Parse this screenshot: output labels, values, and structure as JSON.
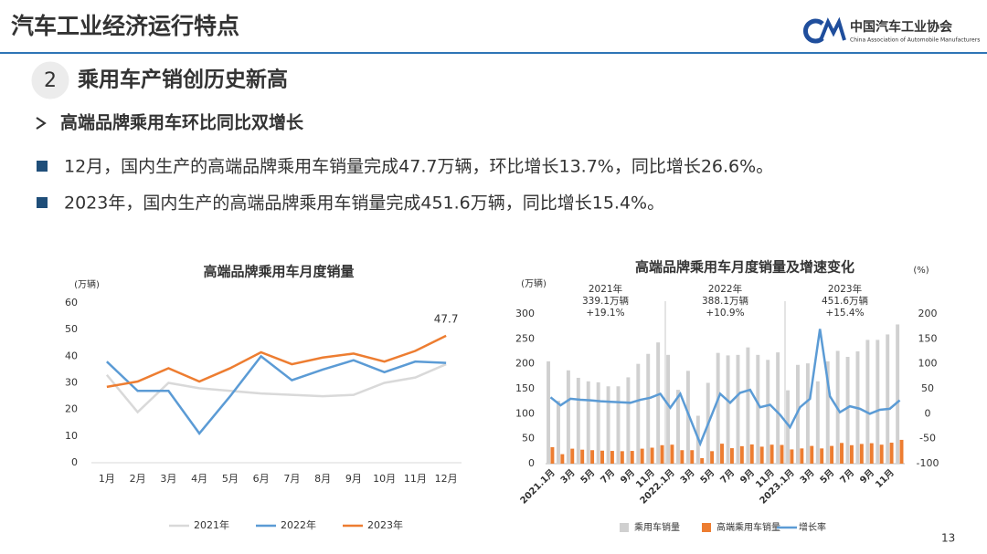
{
  "header": {
    "title": "汽车工业经济运行特点",
    "logo_cn": "中国汽车工业协会",
    "logo_en": "China Association of Automobile Manufacturers"
  },
  "section": {
    "number": "2",
    "title": "乘用车产销创历史新高"
  },
  "subtitle": "高端品牌乘用车环比同比双增长",
  "bullets": [
    "12月，国内生产的高端品牌乘用车销量完成47.7万辆，环比增长13.7%，同比增长26.6%。",
    "2023年，国内生产的高端品牌乘用车销量完成451.6万辆，同比增长15.4%。"
  ],
  "page_number": "13",
  "chart_data": [
    {
      "type": "line",
      "title": "高端品牌乘用车月度销量",
      "y_unit": "(万辆)",
      "categories": [
        "1月",
        "2月",
        "3月",
        "4月",
        "5月",
        "6月",
        "7月",
        "8月",
        "9月",
        "10月",
        "11月",
        "12月"
      ],
      "series": [
        {
          "name": "2021年",
          "color": "#d9d9d9",
          "values": [
            33,
            19,
            30,
            28,
            27,
            26,
            25.5,
            25,
            25.5,
            30,
            32,
            37
          ]
        },
        {
          "name": "2022年",
          "color": "#5b9bd5",
          "values": [
            38,
            27,
            27,
            11,
            25,
            40,
            31,
            35,
            38.5,
            34,
            38,
            37.5
          ]
        },
        {
          "name": "2023年",
          "color": "#ed7d31",
          "values": [
            28.5,
            30.5,
            35.5,
            30.5,
            35.5,
            41.5,
            37,
            39.5,
            41,
            38,
            42,
            47.7
          ]
        }
      ],
      "ylim": [
        0,
        60
      ],
      "yticks": [
        0,
        10,
        20,
        30,
        40,
        50,
        60
      ],
      "legend": "bottom"
    },
    {
      "type": "combo",
      "title": "高端品牌乘用车月度销量及增速变化",
      "y_unit": "(万辆)",
      "y2_unit": "(%)",
      "categories": [
        "2021.1月",
        null,
        "3月",
        null,
        "5月",
        null,
        "7月",
        null,
        "9月",
        null,
        "11月",
        null,
        "2022.1月",
        null,
        "3月",
        null,
        "5月",
        null,
        "7月",
        null,
        "9月",
        null,
        "11月",
        null,
        "2023.1月",
        null,
        "3月",
        null,
        "5月",
        null,
        "7月",
        null,
        "9月",
        null,
        "11月",
        null
      ],
      "series": [
        {
          "name": "乘用车销量",
          "type": "bar",
          "color": "#d0d0d0",
          "values": [
            205,
            126,
            187,
            172,
            165,
            163,
            155,
            155,
            173,
            200,
            220,
            243,
            218,
            148,
            186,
            96,
            162,
            222,
            217,
            218,
            233,
            218,
            208,
            223,
            147,
            198,
            201,
            165,
            205,
            226,
            214,
            225,
            248,
            248,
            259,
            279
          ]
        },
        {
          "name": "高端乘用车销量",
          "type": "bar",
          "color": "#ed7d31",
          "values": [
            33,
            19,
            30,
            28,
            27,
            26,
            25.5,
            25,
            25.5,
            30,
            32,
            37,
            38,
            27,
            27,
            11,
            25,
            40,
            31,
            35,
            38.5,
            34,
            38,
            37.5,
            28.5,
            30.5,
            35.5,
            30.5,
            35.5,
            41.5,
            37,
            39.5,
            41,
            38,
            42,
            47.7
          ]
        },
        {
          "name": "增长率",
          "type": "line",
          "axis": "y2",
          "color": "#5b9bd5",
          "values": [
            33,
            17,
            30,
            28,
            27,
            25,
            24,
            23,
            22,
            28,
            32,
            40,
            12,
            40,
            -10,
            -60,
            -10,
            40,
            22,
            42,
            48,
            13,
            18,
            -2,
            -27,
            13,
            30,
            170,
            35,
            3,
            15,
            10,
            0,
            8,
            10,
            27
          ]
        }
      ],
      "ylim": [
        0,
        300
      ],
      "yticks": [
        0,
        50,
        100,
        150,
        200,
        250,
        300
      ],
      "y2lim": [
        -100,
        200
      ],
      "y2ticks": [
        -100,
        -50,
        0,
        50,
        100,
        150,
        200
      ],
      "annotations": [
        {
          "lines": [
            "2021年",
            "339.1万辆",
            "+19.1%"
          ]
        },
        {
          "lines": [
            "2022年",
            "388.1万辆",
            "+10.9%"
          ]
        },
        {
          "lines": [
            "2023年",
            "451.6万辆",
            "+15.4%"
          ]
        }
      ],
      "legend": "bottom"
    }
  ]
}
